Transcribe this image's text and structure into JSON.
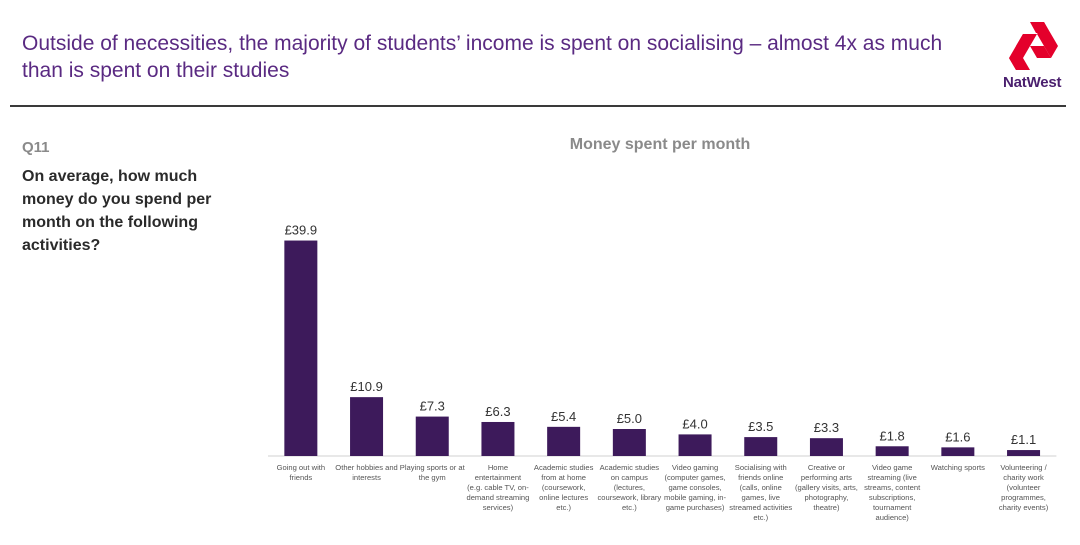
{
  "header": {
    "headline": "Outside of necessities, the majority of students’ income is spent on socialising – almost 4x as much than is spent on their studies",
    "brand": "NatWest",
    "brand_color": "#e4002b",
    "accent_color": "#5a2a82"
  },
  "question": {
    "number": "Q11",
    "text": "On average, how much money do you spend per month on the following activities?"
  },
  "chart_data": {
    "type": "bar",
    "title": "Money spent per month",
    "xlabel": "",
    "ylabel": "",
    "ylim": [
      0,
      40
    ],
    "grid": false,
    "legend": "none",
    "bar_color": "#3d1a5b",
    "categories": [
      "Going out with friends",
      "Other hobbies and interests",
      "Playing sports or at the gym",
      "Home entertainment (e.g. cable TV, on-demand streaming services)",
      "Academic studies from at home (coursework, online lectures etc.)",
      "Academic studies on campus (lectures, coursework, library etc.)",
      "Video gaming (computer games, game consoles, mobile gaming, in-game purchases)",
      "Socialising with friends online (calls, online games, live streamed activities etc.)",
      "Creative or performing arts (gallery visits, arts, photography, theatre)",
      "Video game streaming (live streams, content subscriptions, tournament audience)",
      "Watching sports",
      "Volunteering / charity work (volunteer programmes, charity events)"
    ],
    "category_lines": [
      [
        "Going out with",
        "friends"
      ],
      [
        "Other hobbies and",
        "interests"
      ],
      [
        "Playing sports or at",
        "the gym"
      ],
      [
        "Home",
        "entertainment",
        "(e.g. cable TV, on-",
        "demand streaming",
        "services)"
      ],
      [
        "Academic studies",
        "from at home",
        "(coursework,",
        "online lectures",
        "etc.)"
      ],
      [
        "Academic studies",
        "on campus",
        "(lectures,",
        "coursework, library",
        "etc.)"
      ],
      [
        "Video gaming",
        "(computer games,",
        "game consoles,",
        "mobile gaming, in-",
        "game purchases)"
      ],
      [
        "Socialising with",
        "friends online",
        "(calls, online",
        "games, live",
        "streamed activities",
        "etc.)"
      ],
      [
        "Creative or",
        "performing arts",
        "(gallery visits, arts,",
        "photography,",
        "theatre)"
      ],
      [
        "Video game",
        "streaming (live",
        "streams, content",
        "subscriptions,",
        "tournament",
        "audience)"
      ],
      [
        "Watching sports"
      ],
      [
        "Volunteering /",
        "charity work",
        "(volunteer",
        "programmes,",
        "charity events)"
      ]
    ],
    "values": [
      39.9,
      10.9,
      7.3,
      6.3,
      5.4,
      5.0,
      4.0,
      3.5,
      3.3,
      1.8,
      1.6,
      1.1
    ],
    "value_labels": [
      "£39.9",
      "£10.9",
      "£7.3",
      "£6.3",
      "£5.4",
      "£5.0",
      "£4.0",
      "£3.5",
      "£3.3",
      "£1.8",
      "£1.6",
      "£1.1"
    ]
  }
}
